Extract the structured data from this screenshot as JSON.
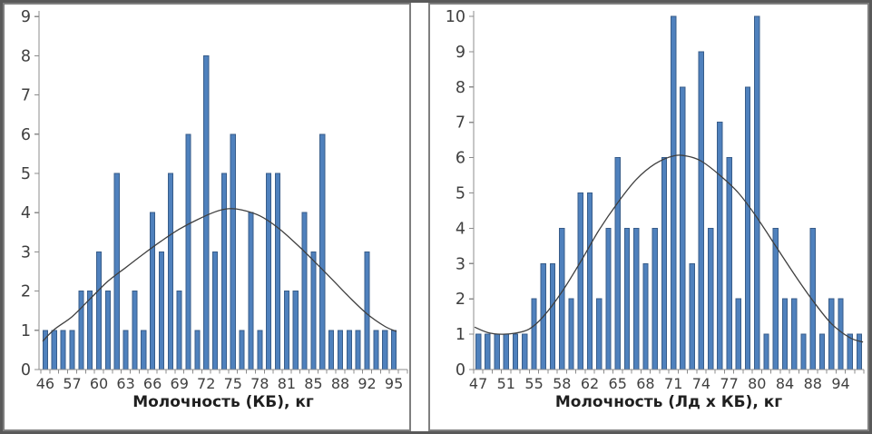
{
  "figure": {
    "description": "Two side-by-side frequency histograms with fitted normal curves",
    "colors": {
      "bar_fill": "#4F81BD",
      "bar_stroke": "#385D8A",
      "curve": "#3F3F3F",
      "axis": "#8C8C8C",
      "tick_text": "#404040",
      "title_text": "#1F1F1F",
      "panel_border": "#7F7F7F",
      "outer_border": "#595959",
      "background": "#FFFFFF"
    }
  },
  "chart_data": [
    {
      "type": "bar",
      "panel": "left",
      "title": "",
      "xlabel": "Молочность (КБ), кг",
      "ylabel": "",
      "ylim": [
        0,
        9
      ],
      "yticks": [
        "0",
        "1",
        "2",
        "3",
        "4",
        "5",
        "6",
        "7",
        "8",
        "9"
      ],
      "x_tick_labels": [
        "46",
        "57",
        "60",
        "63",
        "66",
        "69",
        "72",
        "75",
        "78",
        "81",
        "85",
        "88",
        "92",
        "95"
      ],
      "x_label_every": 3,
      "n_bars": 40,
      "grid": false,
      "legend": false,
      "values": [
        1,
        1,
        1,
        1,
        2,
        2,
        3,
        2,
        5,
        1,
        2,
        1,
        4,
        3,
        5,
        2,
        6,
        1,
        8,
        3,
        5,
        6,
        1,
        4,
        1,
        5,
        5,
        2,
        2,
        4,
        3,
        6,
        1,
        1,
        1,
        1,
        3,
        1,
        1,
        1
      ],
      "curve_name": "normal-distribution-fit",
      "curve_points": [
        [
          0.7,
          0.72
        ],
        [
          2,
          1.02
        ],
        [
          4,
          1.35
        ],
        [
          6,
          1.8
        ],
        [
          8,
          2.25
        ],
        [
          10,
          2.6
        ],
        [
          12,
          2.95
        ],
        [
          14,
          3.28
        ],
        [
          16,
          3.58
        ],
        [
          18,
          3.82
        ],
        [
          20,
          4.02
        ],
        [
          21.5,
          4.1
        ],
        [
          23,
          4.07
        ],
        [
          25,
          3.92
        ],
        [
          27,
          3.62
        ],
        [
          29,
          3.22
        ],
        [
          31,
          2.78
        ],
        [
          33,
          2.32
        ],
        [
          35,
          1.85
        ],
        [
          37,
          1.42
        ],
        [
          39,
          1.1
        ],
        [
          40.3,
          0.97
        ]
      ]
    },
    {
      "type": "bar",
      "panel": "right",
      "title": "",
      "xlabel": "Молочность (Лд х КБ), кг",
      "ylabel": "",
      "ylim": [
        0,
        10
      ],
      "yticks": [
        "0",
        "1",
        "2",
        "3",
        "4",
        "5",
        "6",
        "7",
        "8",
        "9",
        "10"
      ],
      "x_tick_labels": [
        "47",
        "51",
        "55",
        "58",
        "62",
        "65",
        "68",
        "71",
        "74",
        "77",
        "80",
        "84",
        "88",
        "94"
      ],
      "x_label_every": 3,
      "n_bars": 42,
      "grid": false,
      "legend": false,
      "values": [
        1,
        1,
        1,
        1,
        1,
        1,
        2,
        3,
        3,
        4,
        2,
        5,
        5,
        2,
        4,
        6,
        4,
        4,
        3,
        4,
        6,
        10,
        8,
        3,
        9,
        4,
        7,
        6,
        2,
        8,
        10,
        1,
        4,
        2,
        2,
        1,
        4,
        1,
        2,
        2,
        1,
        1
      ],
      "curve_name": "normal-distribution-fit",
      "curve_points": [
        [
          0.6,
          1.2
        ],
        [
          2,
          1.05
        ],
        [
          3.5,
          1.0
        ],
        [
          5,
          1.03
        ],
        [
          6.5,
          1.15
        ],
        [
          8,
          1.5
        ],
        [
          10,
          2.2
        ],
        [
          12,
          3.05
        ],
        [
          14,
          3.95
        ],
        [
          16,
          4.72
        ],
        [
          18,
          5.38
        ],
        [
          20,
          5.82
        ],
        [
          22,
          6.05
        ],
        [
          23.5,
          6.04
        ],
        [
          25,
          5.9
        ],
        [
          27,
          5.5
        ],
        [
          29,
          5.0
        ],
        [
          31,
          4.3
        ],
        [
          33,
          3.5
        ],
        [
          35,
          2.7
        ],
        [
          37,
          1.95
        ],
        [
          39,
          1.3
        ],
        [
          41,
          0.9
        ],
        [
          42.4,
          0.78
        ]
      ]
    }
  ]
}
